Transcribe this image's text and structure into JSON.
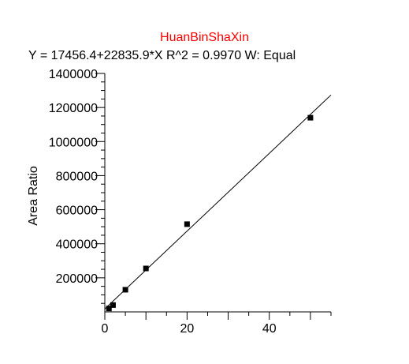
{
  "chart_data": {
    "type": "scatter",
    "title": "HuanBinShaXin",
    "subtitle": "Y = 17456.4+22835.9*X   R^2 = 0.9970   W: Equal",
    "xlabel": "",
    "ylabel": "Area Ratio",
    "xlim": [
      0,
      55
    ],
    "ylim": [
      0,
      1400000
    ],
    "x_ticks": [
      0,
      20,
      40
    ],
    "y_ticks": [
      200000,
      400000,
      600000,
      800000,
      1000000,
      1200000,
      1400000
    ],
    "x_tick_labels": [
      "0",
      "20",
      "40"
    ],
    "y_tick_labels": [
      "200000",
      "400000",
      "600000",
      "800000",
      "1000000",
      "1200000",
      "1400000"
    ],
    "fit": {
      "intercept": 17456.4,
      "slope": 22835.9,
      "r2": 0.997,
      "weighting": "Equal"
    },
    "points": [
      {
        "x": 1,
        "y": 20000
      },
      {
        "x": 2,
        "y": 40000
      },
      {
        "x": 5,
        "y": 130000
      },
      {
        "x": 10,
        "y": 255000
      },
      {
        "x": 20,
        "y": 515000
      },
      {
        "x": 50,
        "y": 1140000
      }
    ],
    "grid": false,
    "colors": {
      "title": "#ff0000",
      "points": "#000000",
      "line": "#000000"
    }
  }
}
